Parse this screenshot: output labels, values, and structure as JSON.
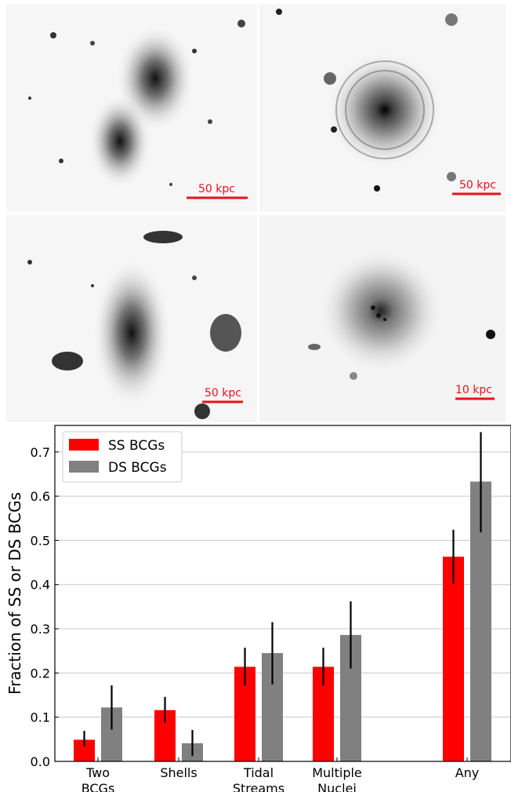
{
  "panels": [
    {
      "scale_bar_label": "50 kpc"
    },
    {
      "scale_bar_label": "50 kpc"
    },
    {
      "scale_bar_label": "50 kpc"
    },
    {
      "scale_bar_label": "10 kpc"
    }
  ],
  "colors": {
    "ss": "#ff0000",
    "ds": "#808080",
    "scale_bar": "#e8121b"
  },
  "chart_data": {
    "type": "bar",
    "ylabel": "Fraction of SS or DS BCGs",
    "ylim": [
      0,
      0.76
    ],
    "yticks": [
      "0.0",
      "0.1",
      "0.2",
      "0.3",
      "0.4",
      "0.5",
      "0.6",
      "0.7"
    ],
    "grid": "horizontal",
    "legend_position": "top-left",
    "categories": [
      {
        "line1": "Two",
        "line2": "BCGs"
      },
      {
        "line1": "Shells",
        "line2": ""
      },
      {
        "line1": "Tidal",
        "line2": "Streams"
      },
      {
        "line1": "Multiple",
        "line2": "Nuclei"
      },
      {
        "line1": "Any",
        "line2": ""
      }
    ],
    "series": [
      {
        "name": "SS BCGs",
        "values": [
          0.049,
          0.116,
          0.214,
          0.214,
          0.463
        ],
        "err_low": [
          0.034,
          0.088,
          0.172,
          0.172,
          0.402
        ],
        "err_high": [
          0.069,
          0.146,
          0.257,
          0.257,
          0.524
        ]
      },
      {
        "name": "DS BCGs",
        "values": [
          0.122,
          0.041,
          0.245,
          0.286,
          0.633
        ],
        "err_low": [
          0.072,
          0.012,
          0.174,
          0.21,
          0.518
        ],
        "err_high": [
          0.172,
          0.071,
          0.315,
          0.362,
          0.745
        ]
      }
    ]
  }
}
